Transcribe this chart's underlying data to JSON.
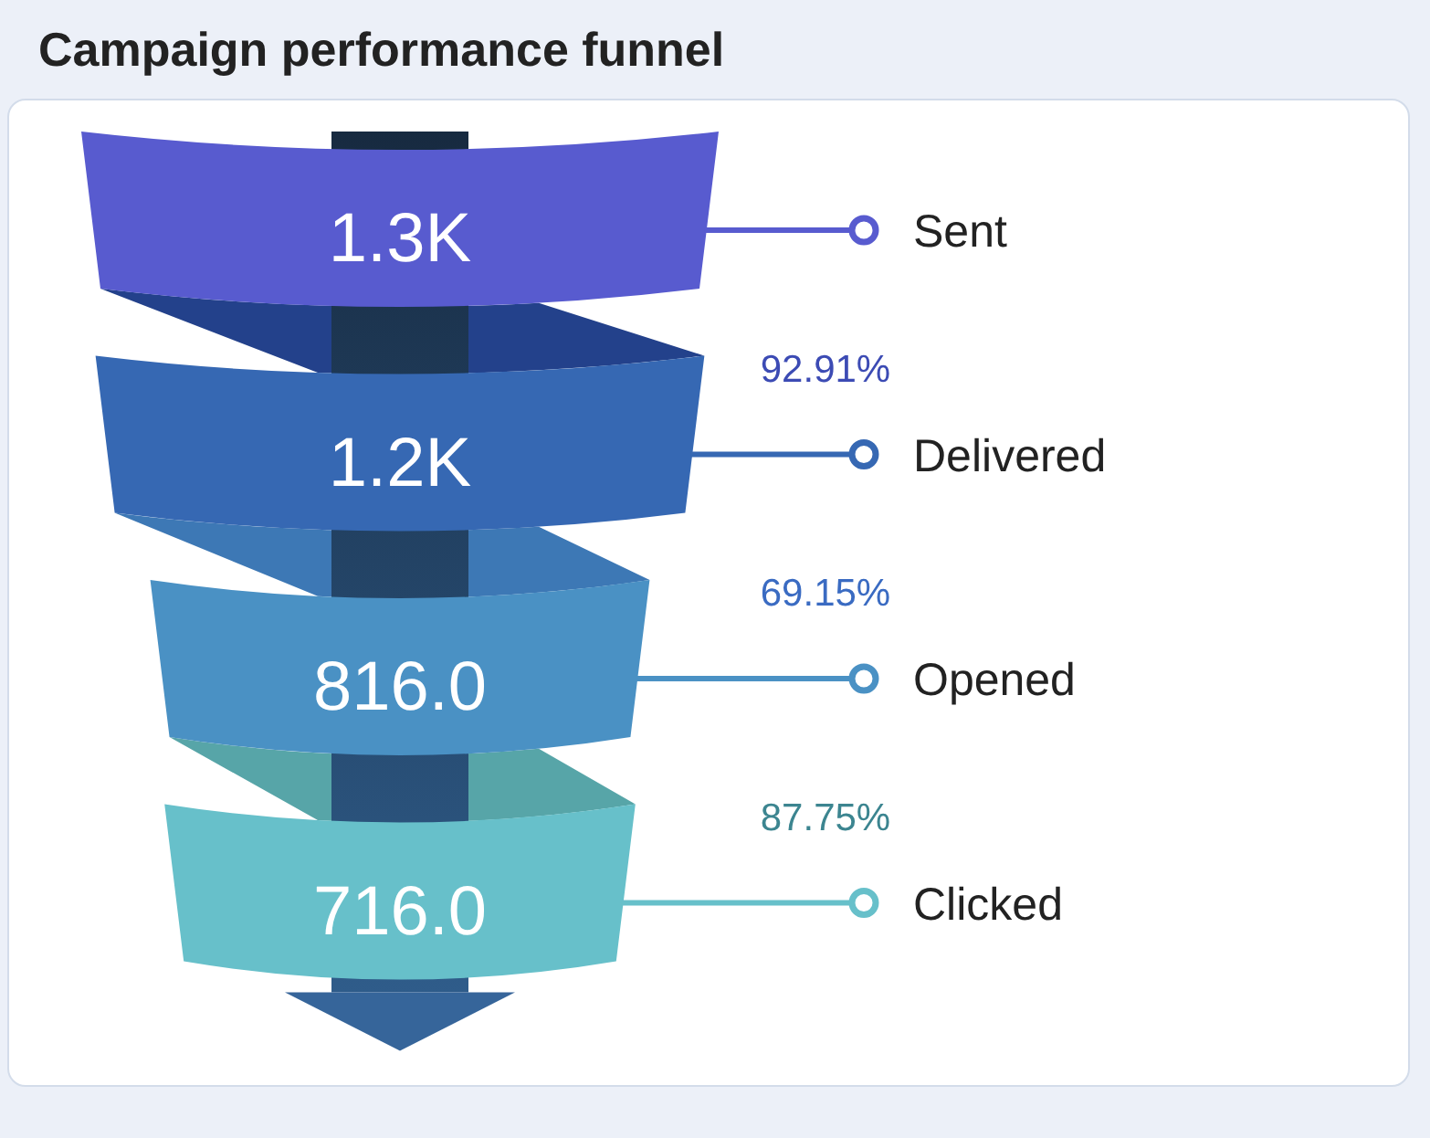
{
  "chart_data": {
    "type": "other",
    "title": "Campaign performance funnel",
    "categories": [
      "Sent",
      "Delivered",
      "Opened",
      "Clicked"
    ],
    "values": [
      1300,
      1200,
      816,
      716
    ],
    "value_labels": [
      "1.3K",
      "1.2K",
      "816.0",
      "716.0"
    ],
    "colors": [
      "#585bcf",
      "#3668b3",
      "#4a91c4",
      "#67c0ca"
    ],
    "annotations": [
      "92.91%",
      "69.15%",
      "87.75%"
    ]
  }
}
